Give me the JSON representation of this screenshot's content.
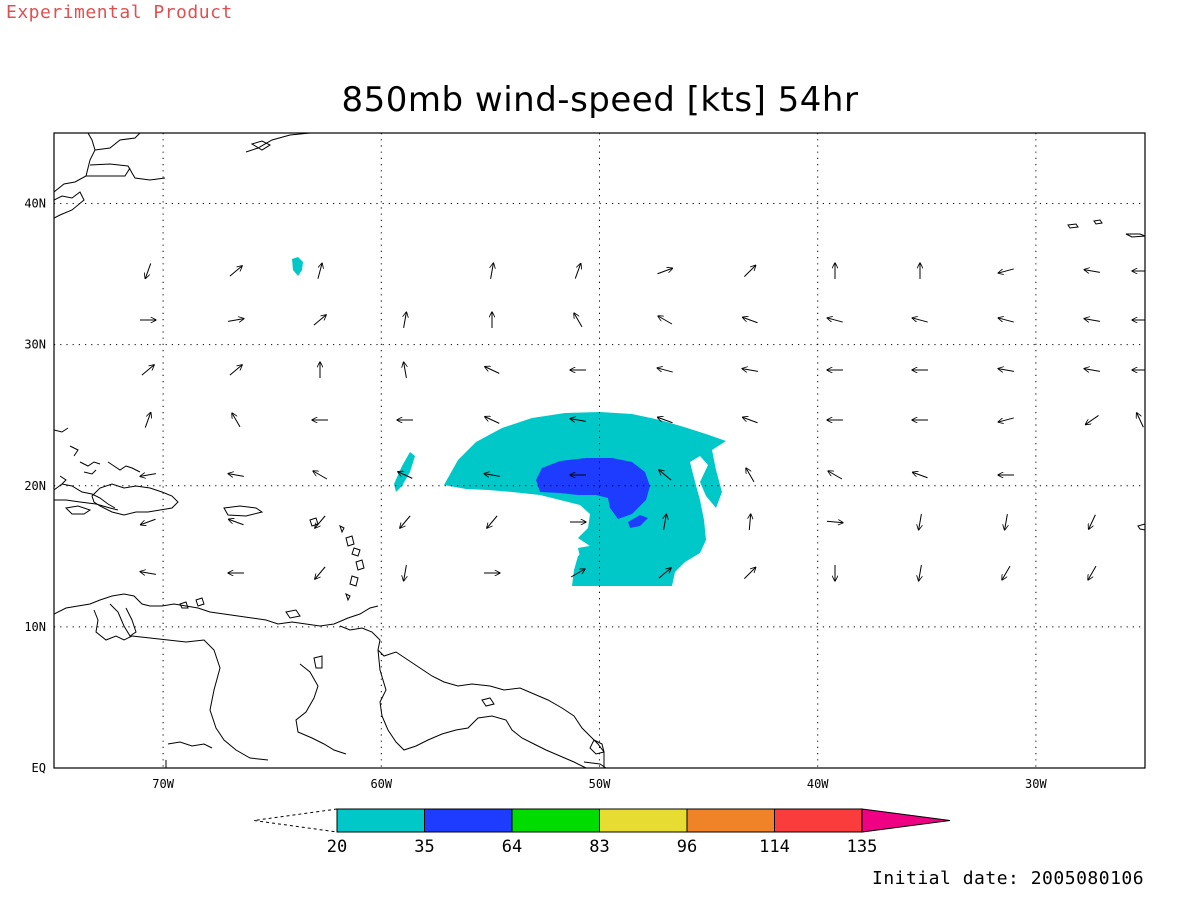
{
  "header": {
    "watermark": "Experimental Product",
    "title": "850mb wind-speed [kts] 54hr"
  },
  "footer": {
    "initial_date": "Initial date: 2005080106"
  },
  "map": {
    "lon_range": [
      -75,
      -25
    ],
    "lat_range": [
      0,
      45
    ],
    "lon_ticks": [
      {
        "value": -70,
        "label": "70W"
      },
      {
        "value": -60,
        "label": "60W"
      },
      {
        "value": -50,
        "label": "50W"
      },
      {
        "value": -40,
        "label": "40W"
      },
      {
        "value": -30,
        "label": "30W"
      }
    ],
    "lat_ticks": [
      {
        "value": 0,
        "label": "EQ"
      },
      {
        "value": 10,
        "label": "10N"
      },
      {
        "value": 20,
        "label": "20N"
      },
      {
        "value": 30,
        "label": "30N"
      },
      {
        "value": 40,
        "label": "40N"
      }
    ],
    "grid": "dotted",
    "wind_arrow_angles_deg": [
      [
        -110,
        40,
        75,
        null,
        80,
        70,
        20,
        45,
        90,
        90,
        -165,
        170,
        180
      ],
      [
        0,
        10,
        40,
        80,
        90,
        120,
        150,
        160,
        165,
        165,
        165,
        170,
        180
      ],
      [
        40,
        40,
        90,
        100,
        155,
        180,
        165,
        170,
        180,
        180,
        170,
        170,
        180
      ],
      [
        70,
        120,
        180,
        180,
        155,
        170,
        160,
        160,
        180,
        180,
        -165,
        -145,
        115
      ],
      [
        -170,
        170,
        150,
        155,
        170,
        180,
        140,
        120,
        150,
        160,
        180,
        null,
        null
      ],
      [
        -160,
        160,
        -130,
        -130,
        -130,
        0,
        80,
        85,
        -5,
        -100,
        -100,
        -115,
        null
      ],
      [
        170,
        180,
        -130,
        -100,
        0,
        30,
        40,
        45,
        -90,
        -100,
        -120,
        -120,
        null
      ]
    ],
    "colors": {
      "coastline": "#000000",
      "grid": "#000000",
      "frame": "#000000",
      "arrow": "#000000"
    }
  },
  "legend": {
    "labels": [
      "20",
      "35",
      "64",
      "83",
      "96",
      "114",
      "135"
    ],
    "colors": [
      "#00c8c8",
      "#1e3cff",
      "#00dc00",
      "#e6dc32",
      "#f08228",
      "#fa3c3c",
      "#f00082"
    ]
  }
}
